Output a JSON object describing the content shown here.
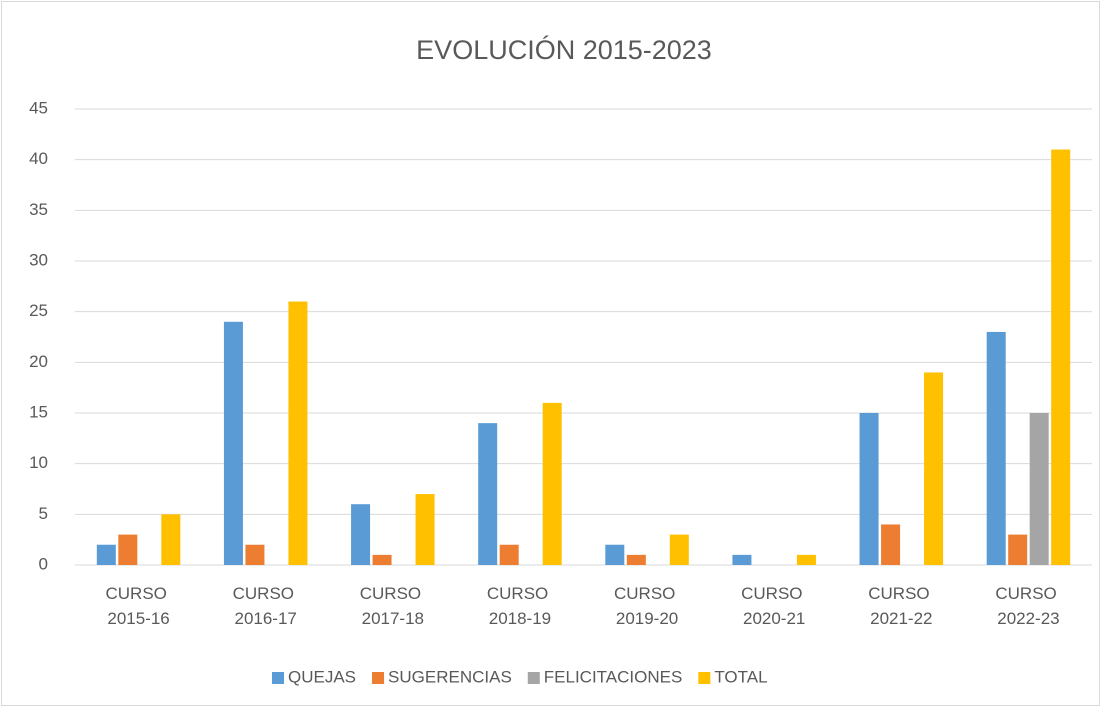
{
  "chart_data": {
    "type": "bar",
    "title": "EVOLUCIÓN 2015-2023",
    "categories": [
      "CURSO 2015-16",
      "CURSO 2016-17",
      "CURSO 2017-18",
      "CURSO 2018-19",
      "CURSO 2019-20",
      "CURSO 2020-21",
      "CURSO 2021-22",
      "CURSO 2022-23"
    ],
    "series": [
      {
        "name": "QUEJAS",
        "color": "#5b9bd5",
        "values": [
          2,
          24,
          6,
          14,
          2,
          1,
          15,
          23
        ]
      },
      {
        "name": "SUGERENCIAS",
        "color": "#ed7d31",
        "values": [
          3,
          2,
          1,
          2,
          1,
          0,
          4,
          3
        ]
      },
      {
        "name": "FELICITACIONES",
        "color": "#a5a5a5",
        "values": [
          0,
          0,
          0,
          0,
          0,
          0,
          0,
          15
        ]
      },
      {
        "name": "TOTAL",
        "color": "#ffc000",
        "values": [
          5,
          26,
          7,
          16,
          3,
          1,
          19,
          41
        ]
      }
    ],
    "ylim": [
      0,
      45
    ],
    "yticks": [
      0,
      5,
      10,
      15,
      20,
      25,
      30,
      35,
      40,
      45
    ],
    "grid": true,
    "legend": "bottom"
  }
}
